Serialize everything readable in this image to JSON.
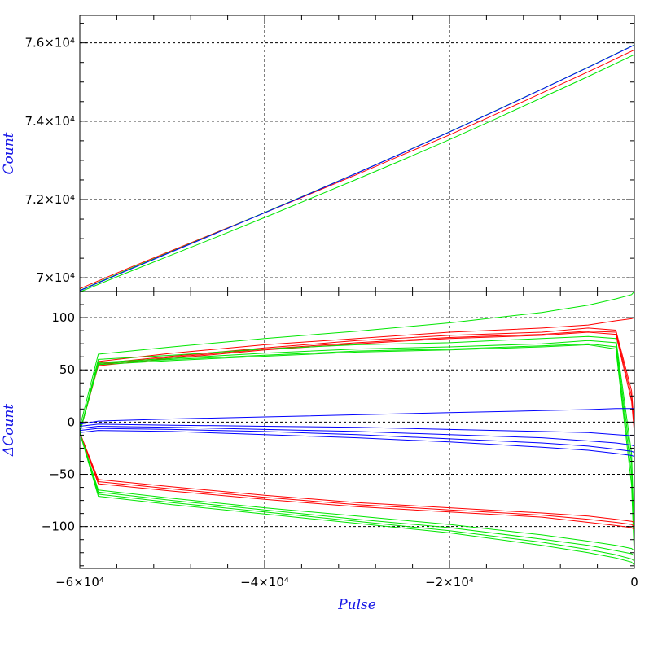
{
  "chart_data": [
    {
      "panel": "top",
      "type": "line",
      "ylabel": "Count",
      "xlim": [
        -60000,
        0
      ],
      "ylim": [
        69650,
        76700
      ],
      "grid": true,
      "yticks_major": [
        {
          "value": 70000,
          "label": "7×10⁴"
        },
        {
          "value": 72000,
          "label": "7.2×10⁴"
        },
        {
          "value": 74000,
          "label": "7.4×10⁴"
        },
        {
          "value": 76000,
          "label": "7.6×10⁴"
        }
      ],
      "x": [
        -60000,
        -55000,
        -50000,
        -45000,
        -40000,
        -35000,
        -30000,
        -25000,
        -20000,
        -15000,
        -10000,
        -5000,
        0
      ],
      "series": [
        {
          "color": "#ff0000",
          "values": [
            69720,
            70220,
            70700,
            71180,
            71660,
            72150,
            72640,
            73150,
            73650,
            74180,
            74720,
            75260,
            75820
          ]
        },
        {
          "color": "#00e600",
          "values": [
            69680,
            70190,
            70680,
            71170,
            71670,
            72170,
            72680,
            73200,
            73730,
            74270,
            74820,
            75380,
            75950
          ]
        },
        {
          "color": "#0000ff",
          "values": [
            69670,
            70175,
            70670,
            71165,
            71660,
            72165,
            72675,
            73195,
            73725,
            74265,
            74815,
            75375,
            75945
          ]
        },
        {
          "color": "#00e600",
          "values": [
            69640,
            70120,
            70590,
            71060,
            71540,
            72030,
            72520,
            73020,
            73530,
            74060,
            74600,
            75140,
            75700
          ]
        }
      ]
    },
    {
      "panel": "bottom",
      "type": "line",
      "xlabel": "Pulse",
      "ylabel": "ΔCount",
      "xlim": [
        -60000,
        0
      ],
      "ylim": [
        -140,
        125
      ],
      "grid": true,
      "xticks_major": [
        {
          "value": -60000,
          "label": "−6×10⁴"
        },
        {
          "value": -40000,
          "label": "−4×10⁴"
        },
        {
          "value": -20000,
          "label": "−2×10⁴"
        },
        {
          "value": 0,
          "label": "0"
        }
      ],
      "yticks_major": [
        {
          "value": -100,
          "label": "−100"
        },
        {
          "value": -50,
          "label": "−50"
        },
        {
          "value": 0,
          "label": "0"
        },
        {
          "value": 50,
          "label": "50"
        },
        {
          "value": 100,
          "label": "100"
        }
      ],
      "x": [
        -60000,
        -58000,
        -50000,
        -40000,
        -30000,
        -20000,
        -10000,
        -5000,
        -2000,
        -300,
        0
      ],
      "series": [
        {
          "color": "#00e600",
          "values": [
            -5,
            65,
            72,
            80,
            87,
            95,
            105,
            112,
            118,
            122,
            125
          ]
        },
        {
          "color": "#ff0000",
          "values": [
            -10,
            58,
            66,
            74,
            80,
            86,
            90,
            93,
            97,
            99,
            100
          ]
        },
        {
          "color": "#ff0000",
          "values": [
            -10,
            56,
            63,
            71,
            78,
            83,
            86,
            90,
            88,
            30,
            -5
          ]
        },
        {
          "color": "#ff0000",
          "values": [
            -10,
            55,
            62,
            70,
            76,
            81,
            84,
            87,
            86,
            25,
            -8
          ]
        },
        {
          "color": "#ff0000",
          "values": [
            -10,
            54,
            61,
            69,
            75,
            80,
            83,
            86,
            84,
            20,
            -10
          ]
        },
        {
          "color": "#00e600",
          "values": [
            -10,
            60,
            64,
            70,
            74,
            76,
            80,
            82,
            80,
            -30,
            -110
          ]
        },
        {
          "color": "#00e600",
          "values": [
            -10,
            57,
            61,
            66,
            70,
            72,
            75,
            78,
            76,
            -40,
            -120
          ]
        },
        {
          "color": "#00e600",
          "values": [
            -10,
            56,
            60,
            64,
            68,
            70,
            73,
            75,
            72,
            -50,
            -125
          ]
        },
        {
          "color": "#00e600",
          "values": [
            -10,
            55,
            59,
            63,
            67,
            69,
            72,
            74,
            70,
            -60,
            -130
          ]
        },
        {
          "color": "#0000ff",
          "values": [
            -2,
            1,
            3,
            5,
            7,
            9,
            11,
            12,
            13,
            13,
            13
          ]
        },
        {
          "color": "#0000ff",
          "values": [
            -4,
            -2,
            -3,
            -4,
            -5,
            -7,
            -9,
            -10,
            -12,
            -13,
            -13
          ]
        },
        {
          "color": "#0000ff",
          "values": [
            -6,
            -4,
            -5,
            -7,
            -9,
            -12,
            -15,
            -18,
            -20,
            -22,
            -23
          ]
        },
        {
          "color": "#0000ff",
          "values": [
            -8,
            -6,
            -7,
            -9,
            -12,
            -16,
            -20,
            -23,
            -26,
            -28,
            -29
          ]
        },
        {
          "color": "#0000ff",
          "values": [
            -10,
            -8,
            -9,
            -12,
            -15,
            -19,
            -24,
            -27,
            -30,
            -32,
            -33
          ]
        },
        {
          "color": "#ff0000",
          "values": [
            -10,
            -55,
            -62,
            -70,
            -77,
            -82,
            -87,
            -90,
            -93,
            -95,
            -96
          ]
        },
        {
          "color": "#ff0000",
          "values": [
            -10,
            -57,
            -64,
            -72,
            -79,
            -84,
            -89,
            -93,
            -96,
            -98,
            -100
          ]
        },
        {
          "color": "#ff0000",
          "values": [
            -10,
            -59,
            -66,
            -74,
            -81,
            -86,
            -91,
            -96,
            -99,
            -101,
            -103
          ]
        },
        {
          "color": "#00e600",
          "values": [
            -10,
            -65,
            -73,
            -82,
            -90,
            -98,
            -108,
            -114,
            -118,
            -121,
            -123
          ]
        },
        {
          "color": "#00e600",
          "values": [
            -10,
            -67,
            -75,
            -84,
            -93,
            -101,
            -112,
            -118,
            -123,
            -126,
            -128
          ]
        },
        {
          "color": "#00e600",
          "values": [
            -10,
            -69,
            -77,
            -86,
            -95,
            -104,
            -115,
            -122,
            -127,
            -131,
            -133
          ]
        },
        {
          "color": "#00e600",
          "values": [
            -10,
            -71,
            -79,
            -88,
            -97,
            -106,
            -118,
            -125,
            -130,
            -134,
            -137
          ]
        }
      ]
    }
  ]
}
